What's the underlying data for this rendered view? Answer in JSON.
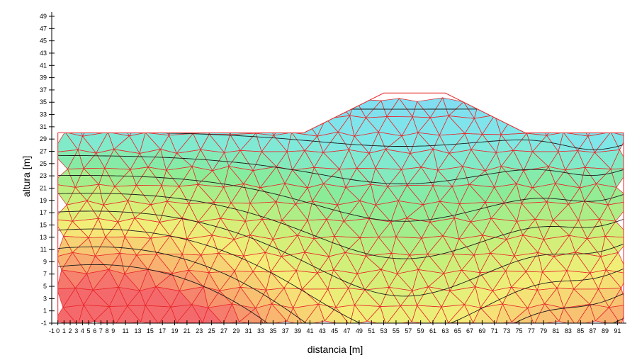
{
  "chart_data": {
    "type": "heatmap",
    "title": "",
    "xlabel": "distancia [m]",
    "ylabel": "altura [m]",
    "xlim": [
      -1,
      92
    ],
    "ylim": [
      -1,
      49
    ],
    "x_ticks": [
      -1,
      0,
      1,
      2,
      3,
      4,
      5,
      6,
      7,
      8,
      9,
      11,
      13,
      15,
      17,
      19,
      21,
      23,
      25,
      27,
      29,
      31,
      33,
      35,
      37,
      39,
      41,
      43,
      45,
      47,
      49,
      51,
      53,
      55,
      57,
      59,
      61,
      63,
      65,
      67,
      69,
      71,
      73,
      75,
      77,
      79,
      81,
      83,
      85,
      87,
      89,
      91
    ],
    "y_ticks": [
      -1,
      1,
      3,
      5,
      7,
      9,
      11,
      13,
      15,
      17,
      19,
      21,
      23,
      25,
      27,
      29,
      31,
      33,
      35,
      37,
      39,
      41,
      43,
      45,
      47,
      49
    ],
    "grid": false,
    "domain_outline": [
      [
        0,
        -1
      ],
      [
        92,
        -1
      ],
      [
        92,
        30
      ],
      [
        76,
        30
      ],
      [
        63,
        36.5
      ],
      [
        53,
        36.5
      ],
      [
        40,
        30
      ],
      [
        0,
        30
      ]
    ],
    "colors": {
      "mesh": "#e8262a",
      "contour": "#1a1a1a",
      "axis": "#000000",
      "color_scale": [
        "#82d8f5",
        "#7ee8e8",
        "#86ec9a",
        "#c8f07a",
        "#f4ee78",
        "#f8b870",
        "#f46a6c"
      ]
    }
  }
}
